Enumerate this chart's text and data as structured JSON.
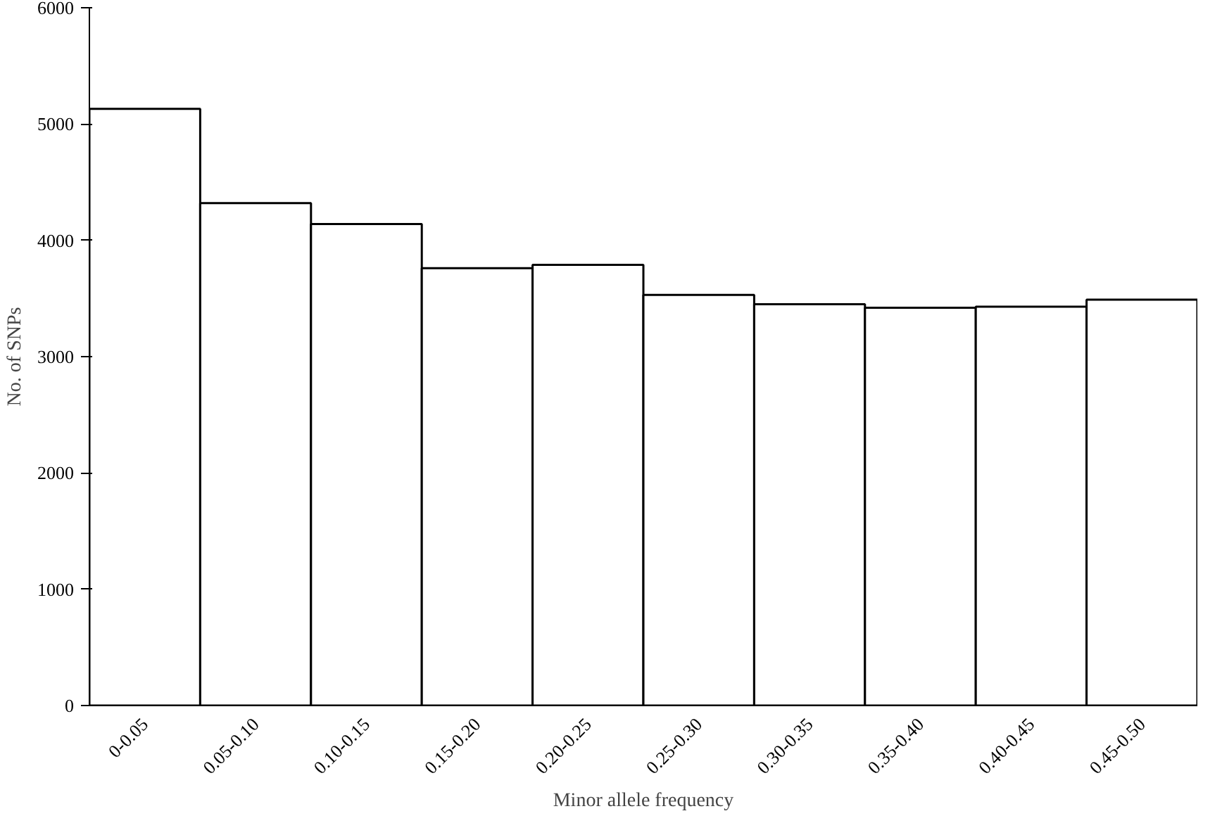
{
  "chart_data": {
    "type": "bar",
    "xlabel": "Minor allele frequency",
    "ylabel": "No. of SNPs",
    "categories": [
      "0-0.05",
      "0.05-0.10",
      "0.10-0.15",
      "0.15-0.20",
      "0.20-0.25",
      "0.25-0.30",
      "0.30-0.35",
      "0.35-0.40",
      "0.40-0.45",
      "0.45-0.50"
    ],
    "values": [
      5130,
      4320,
      4140,
      3760,
      3790,
      3530,
      3450,
      3420,
      3430,
      3490
    ],
    "color": "#ffffff",
    "ylim": [
      0,
      6000
    ],
    "yticks": [
      0,
      1000,
      2000,
      3000,
      4000,
      5000,
      6000
    ],
    "grid": false
  }
}
